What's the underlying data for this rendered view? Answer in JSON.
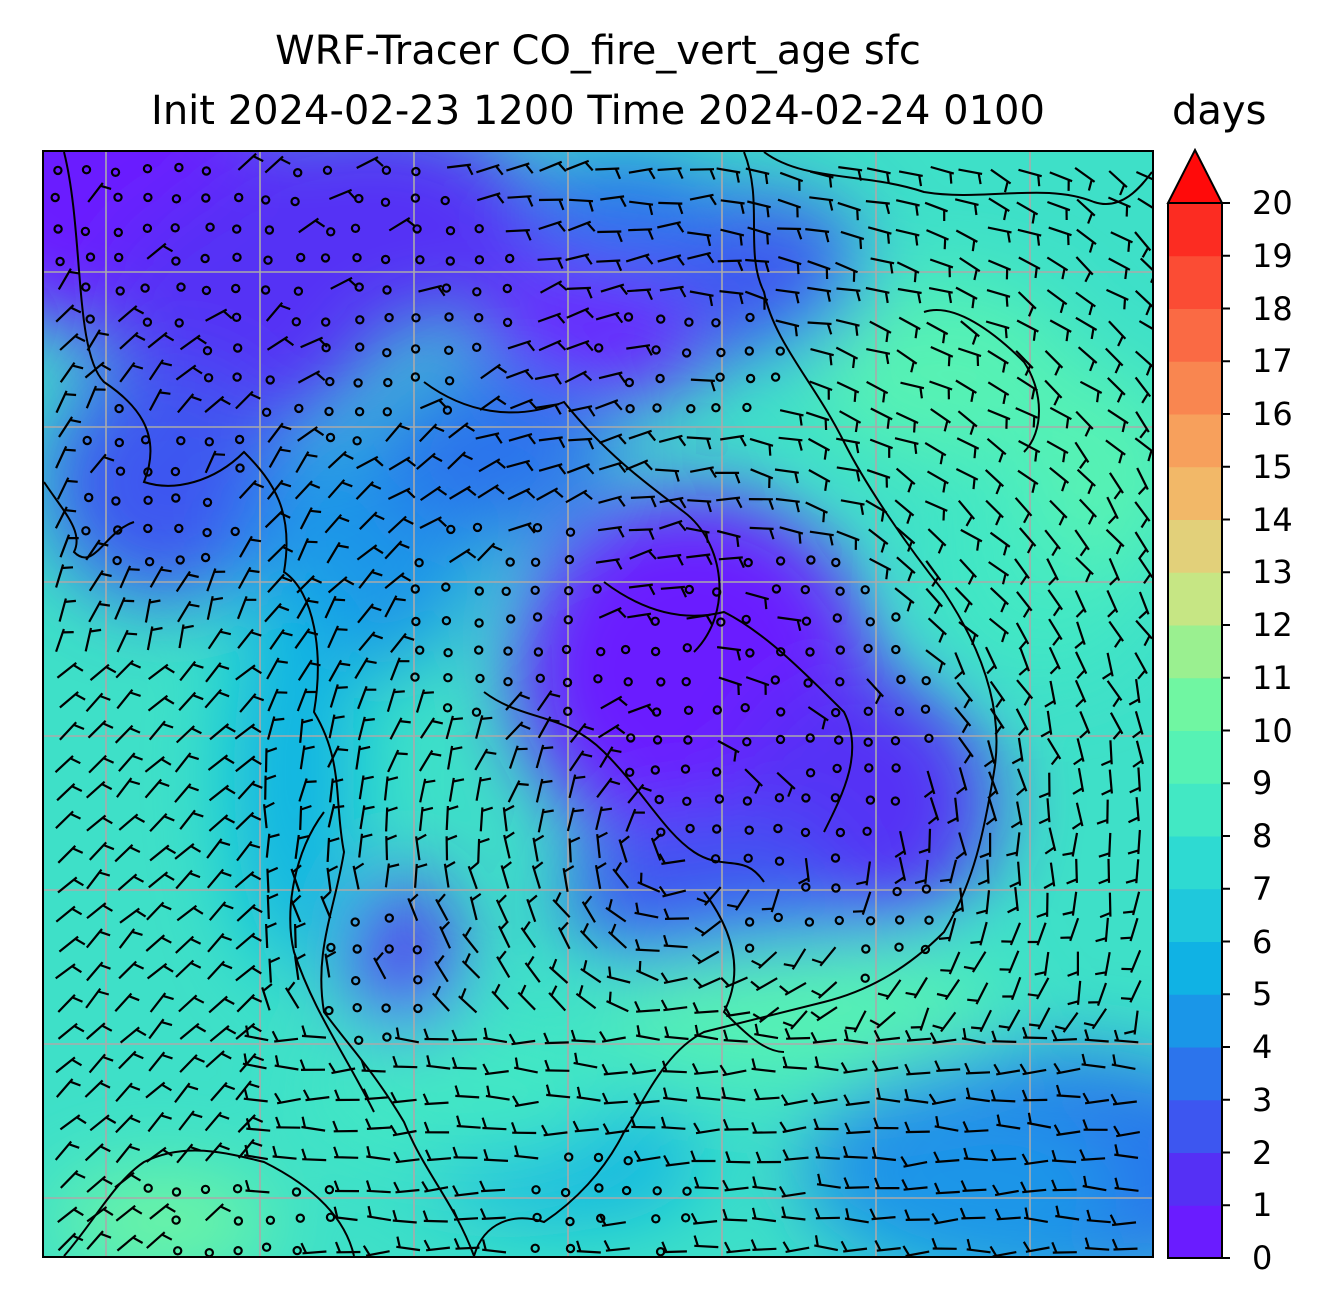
{
  "title": {
    "line1": "WRF-Tracer CO_fire_vert_age sfc",
    "line2": "Init 2024-02-23 1200 Time 2024-02-24 0100"
  },
  "colorbar": {
    "units": "days",
    "min": 0,
    "max": 20,
    "step": 1,
    "extend": "max",
    "tick_labels": [
      "0",
      "1",
      "2",
      "3",
      "4",
      "5",
      "6",
      "7",
      "8",
      "9",
      "10",
      "11",
      "12",
      "13",
      "14",
      "15",
      "16",
      "17",
      "18",
      "19",
      "20"
    ],
    "colors": [
      "#6a1cff",
      "#5530f5",
      "#3d56f0",
      "#2c74ec",
      "#1a96e8",
      "#10b2e4",
      "#1fc8dc",
      "#2edad2",
      "#42e8c4",
      "#56f2b4",
      "#70f6a2",
      "#9af090",
      "#c6e684",
      "#e2d07a",
      "#f2b868",
      "#f7a05c",
      "#f98650",
      "#fa6a44",
      "#fb4c34",
      "#fc2c22"
    ],
    "arrow_color": "#ff0a0a"
  },
  "map": {
    "gridlines": "on",
    "wind_barbs": "on",
    "coastlines": "on"
  }
}
